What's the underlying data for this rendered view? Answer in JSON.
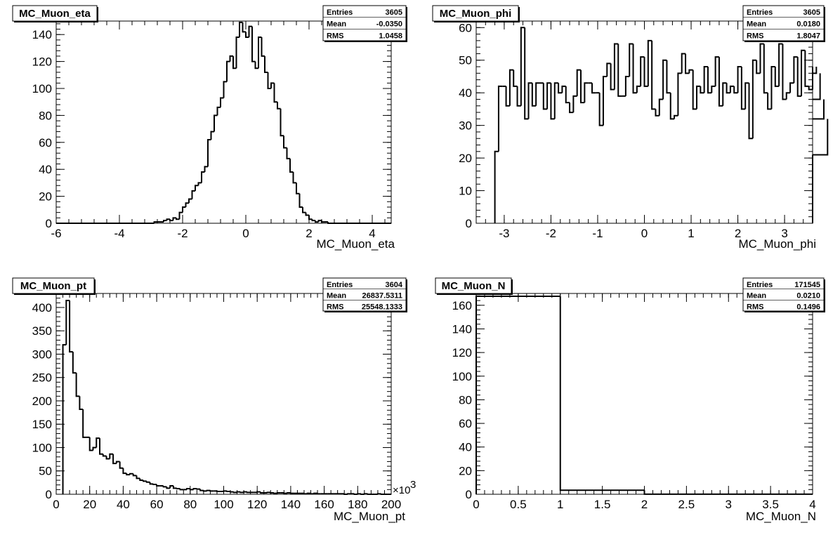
{
  "chart_data": [
    {
      "type": "bar",
      "title": "MC_Muon_eta",
      "xlabel": "MC_Muon_eta",
      "ylabel": "",
      "xlim": [
        -6,
        4.6
      ],
      "ylim": [
        0,
        150
      ],
      "xticks": [
        "-6",
        "-4",
        "-2",
        "0",
        "2",
        "4"
      ],
      "yticks": [
        "0",
        "20",
        "40",
        "60",
        "80",
        "100",
        "120",
        "140"
      ],
      "stats": {
        "Entries": "3605",
        "Mean": "-0.0350",
        "RMS": "1.0458"
      },
      "bin_edges_start": -6.0,
      "bin_width": 0.1,
      "values": [
        0,
        0,
        0,
        0,
        0,
        0,
        0,
        0,
        0,
        0,
        0,
        0,
        0,
        0,
        0,
        0,
        0,
        0,
        0,
        0,
        0,
        0,
        0,
        0,
        0,
        0,
        0,
        0,
        0,
        0,
        0,
        1,
        1,
        1,
        2,
        3,
        2,
        4,
        3,
        8,
        12,
        15,
        18,
        24,
        28,
        30,
        38,
        42,
        62,
        68,
        80,
        86,
        93,
        105,
        120,
        124,
        115,
        138,
        149,
        142,
        138,
        146,
        120,
        115,
        138,
        124,
        112,
        100,
        104,
        90,
        85,
        65,
        56,
        48,
        38,
        30,
        22,
        12,
        8,
        6,
        3,
        2,
        1,
        2,
        1,
        1,
        0,
        0,
        0,
        0,
        0,
        0,
        0,
        0,
        0,
        0,
        0,
        0,
        0,
        0,
        0,
        0,
        0,
        0,
        0,
        0
      ]
    },
    {
      "type": "bar",
      "title": "MC_Muon_phi",
      "xlabel": "MC_Muon_phi",
      "ylabel": "",
      "xlim": [
        -3.6,
        3.6
      ],
      "ylim": [
        0,
        62
      ],
      "xticks": [
        "-3",
        "-2",
        "-1",
        "0",
        "1",
        "2",
        "3"
      ],
      "yticks": [
        "0",
        "10",
        "20",
        "30",
        "40",
        "50",
        "60"
      ],
      "stats": {
        "Entries": "3605",
        "Mean": "0.0180",
        "RMS": "1.8047"
      },
      "bin_edges_start": -3.2,
      "bin_width": 0.08,
      "values": [
        22,
        42,
        42,
        36,
        47,
        42,
        36,
        60,
        32,
        43,
        36,
        43,
        43,
        35,
        43,
        32,
        43,
        40,
        42,
        37,
        34,
        39,
        47,
        37,
        43,
        43,
        40,
        40,
        30,
        45,
        49,
        41,
        55,
        39,
        39,
        45,
        55,
        40,
        42,
        51,
        42,
        56,
        35,
        33,
        38,
        50,
        40,
        32,
        33,
        46,
        52,
        46,
        47,
        35,
        42,
        40,
        48,
        40,
        42,
        51,
        36,
        43,
        40,
        42,
        40,
        48,
        35,
        43,
        26,
        50,
        46,
        55,
        40,
        35,
        48,
        42,
        55,
        38,
        40,
        43,
        51,
        39,
        53,
        42,
        41,
        48,
        46,
        38,
        32,
        21
      ]
    },
    {
      "type": "bar",
      "title": "MC_Muon_pt",
      "xlabel": "MC_Muon_pt",
      "ylabel": "",
      "x_multiplier": "×10",
      "x_multiplier_exp": "3",
      "xlim": [
        0,
        200
      ],
      "ylim": [
        0,
        430
      ],
      "xticks": [
        "0",
        "20",
        "40",
        "60",
        "80",
        "100",
        "120",
        "140",
        "160",
        "180",
        "200"
      ],
      "yticks": [
        "0",
        "50",
        "100",
        "150",
        "200",
        "250",
        "300",
        "350",
        "400"
      ],
      "stats": {
        "Entries": "3604",
        "Mean": "26837.5311",
        "RMS": "25548.1333"
      },
      "bin_edges_start": 4.0,
      "bin_width": 2.0,
      "values": [
        320,
        415,
        305,
        260,
        210,
        182,
        122,
        122,
        94,
        100,
        120,
        86,
        82,
        76,
        86,
        66,
        70,
        56,
        45,
        42,
        44,
        40,
        34,
        30,
        28,
        26,
        22,
        21,
        18,
        18,
        16,
        13,
        18,
        13,
        12,
        10,
        10,
        12,
        10,
        12,
        11,
        8,
        7,
        8,
        7,
        7,
        6,
        6,
        7,
        6,
        5,
        4,
        5,
        4,
        5,
        4,
        4,
        4,
        5,
        3,
        3,
        4,
        3,
        2,
        3,
        3,
        2,
        3,
        2,
        2,
        2,
        2,
        1,
        2,
        1,
        2,
        1,
        1,
        1,
        1,
        1,
        1,
        1,
        1,
        0,
        1,
        1,
        0,
        1,
        0,
        1,
        0,
        0,
        0,
        1,
        0,
        0,
        0
      ]
    },
    {
      "type": "bar",
      "title": "MC_Muon_N",
      "xlabel": "MC_Muon_N",
      "ylabel": "",
      "xlim": [
        0,
        4
      ],
      "ylim": [
        0,
        170
      ],
      "xticks": [
        "0",
        "0.5",
        "1",
        "1.5",
        "2",
        "2.5",
        "3",
        "3.5",
        "4"
      ],
      "yticks": [
        "0",
        "20",
        "40",
        "60",
        "80",
        "100",
        "120",
        "140",
        "160"
      ],
      "stats": {
        "Entries": "171545",
        "Mean": "0.0210",
        "RMS": "0.1496"
      },
      "bin_edges": [
        0,
        1,
        2,
        4
      ],
      "values": [
        167.6,
        3.4,
        0.05
      ]
    }
  ]
}
